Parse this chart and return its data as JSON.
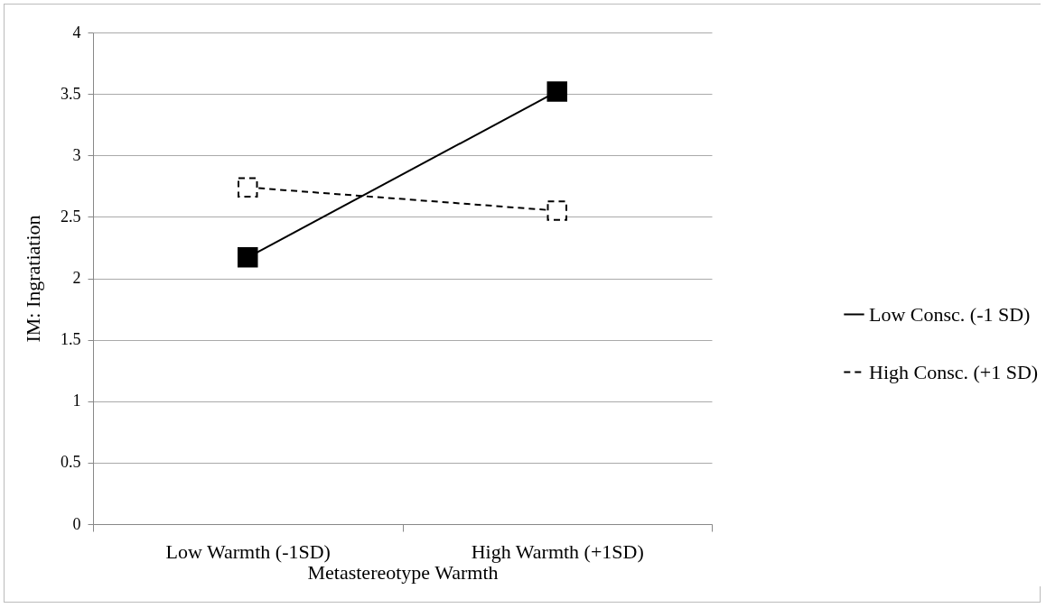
{
  "chart_data": {
    "type": "line",
    "xlabel": "Metastereotype Warmth",
    "ylabel": "IM: Ingratiation",
    "categories": [
      "Low Warmth  (-1SD)",
      "High Warmth (+1SD)"
    ],
    "series": [
      {
        "name": "Low Consc. (-1 SD)",
        "color": "#000000",
        "line_style": "solid",
        "values": [
          2.17,
          3.52
        ]
      },
      {
        "name": "High Consc. (+1 SD)",
        "color": "#000000",
        "line_style": "dashed",
        "values": [
          2.74,
          2.55
        ]
      }
    ],
    "ylim": [
      0,
      4
    ],
    "yticks": [
      0,
      0.5,
      1,
      1.5,
      2,
      2.5,
      3,
      3.5,
      4
    ],
    "grid": "y",
    "legend": "right",
    "marker": "square"
  }
}
